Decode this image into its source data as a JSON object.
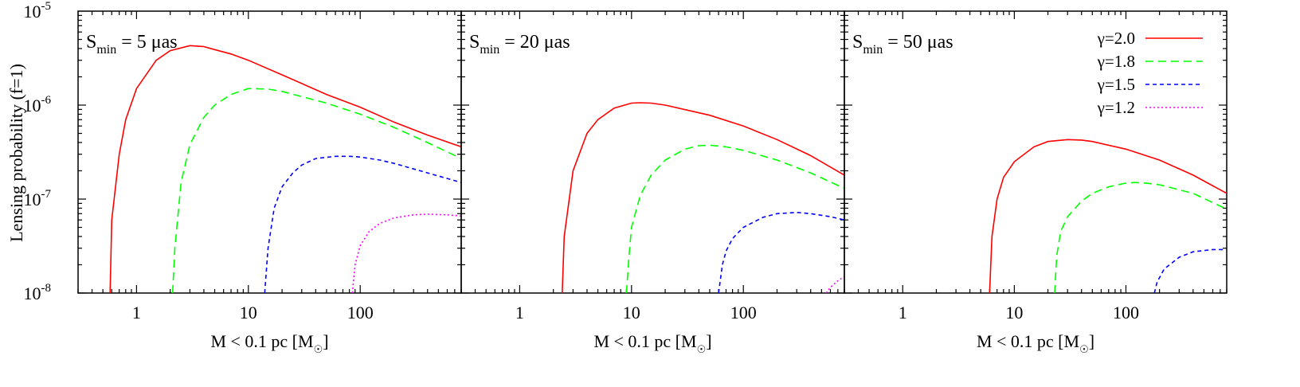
{
  "figure": {
    "ylabel": "Lensing probability (f=1)",
    "xlabel": "M < 0.1 pc [M",
    "xlabel_sub": "☉",
    "xlabel_close": "]"
  },
  "legend": [
    {
      "name": "γ=2.0",
      "color": "#ff0000",
      "dash": "solid"
    },
    {
      "name": "γ=1.8",
      "color": "#00ff00",
      "dash": "dashed"
    },
    {
      "name": "γ=1.5",
      "color": "#0000ff",
      "dash": "short-dashed"
    },
    {
      "name": "γ=1.2",
      "color": "#ff00ff",
      "dash": "dotted"
    }
  ],
  "chart_data": [
    {
      "type": "line",
      "panel_label": {
        "base": "S",
        "sub": "min",
        "rest": " = 5 μas"
      },
      "x_scale": "log",
      "y_scale": "log",
      "xlim": [
        0.3,
        800
      ],
      "ylim": [
        1e-08,
        1e-05
      ],
      "x_ticks": [
        1,
        10,
        100
      ],
      "x_tick_labels": [
        "1",
        "10",
        "100"
      ],
      "y_ticks": [
        1e-08,
        1e-07,
        1e-06,
        1e-05
      ],
      "y_tick_labels": [
        "10",
        "10",
        "10",
        "10"
      ],
      "y_tick_exps": [
        "-8",
        "-7",
        "-6",
        "-5"
      ],
      "series": [
        {
          "name": "γ=2.0",
          "points": [
            [
              0.58,
              1e-08
            ],
            [
              0.6,
              6e-08
            ],
            [
              0.7,
              3e-07
            ],
            [
              0.8,
              7e-07
            ],
            [
              1,
              1.5e-06
            ],
            [
              1.5,
              3e-06
            ],
            [
              2,
              3.8e-06
            ],
            [
              3,
              4.3e-06
            ],
            [
              4,
              4.2e-06
            ],
            [
              5,
              3.9e-06
            ],
            [
              7,
              3.5e-06
            ],
            [
              10,
              3e-06
            ],
            [
              20,
              2.1e-06
            ],
            [
              50,
              1.3e-06
            ],
            [
              100,
              9.5e-07
            ],
            [
              200,
              6.6e-07
            ],
            [
              400,
              4.8e-07
            ],
            [
              800,
              3.6e-07
            ]
          ]
        },
        {
          "name": "γ=1.8",
          "points": [
            [
              2.1,
              1e-08
            ],
            [
              2.2,
              3e-08
            ],
            [
              2.5,
              1.5e-07
            ],
            [
              3,
              3.8e-07
            ],
            [
              4,
              7.4e-07
            ],
            [
              5,
              1e-06
            ],
            [
              7,
              1.3e-06
            ],
            [
              10,
              1.5e-06
            ],
            [
              15,
              1.48e-06
            ],
            [
              20,
              1.4e-06
            ],
            [
              50,
              1.05e-06
            ],
            [
              100,
              8e-07
            ],
            [
              200,
              5.8e-07
            ],
            [
              400,
              4e-07
            ],
            [
              800,
              2.7e-07
            ]
          ]
        },
        {
          "name": "γ=1.5",
          "points": [
            [
              14,
              1e-08
            ],
            [
              15,
              3e-08
            ],
            [
              17,
              8e-08
            ],
            [
              20,
              1.35e-07
            ],
            [
              25,
              1.9e-07
            ],
            [
              30,
              2.3e-07
            ],
            [
              40,
              2.7e-07
            ],
            [
              60,
              2.85e-07
            ],
            [
              80,
              2.85e-07
            ],
            [
              100,
              2.8e-07
            ],
            [
              150,
              2.6e-07
            ],
            [
              200,
              2.4e-07
            ],
            [
              400,
              1.9e-07
            ],
            [
              800,
              1.5e-07
            ]
          ]
        },
        {
          "name": "γ=1.2",
          "points": [
            [
              85,
              1e-08
            ],
            [
              90,
              2e-08
            ],
            [
              100,
              3.2e-08
            ],
            [
              120,
              4.5e-08
            ],
            [
              150,
              5.5e-08
            ],
            [
              200,
              6.3e-08
            ],
            [
              300,
              6.8e-08
            ],
            [
              400,
              6.9e-08
            ],
            [
              600,
              6.8e-08
            ],
            [
              800,
              6.6e-08
            ]
          ]
        }
      ]
    },
    {
      "type": "line",
      "panel_label": {
        "base": "S",
        "sub": "min",
        "rest": " = 20 μas"
      },
      "x_scale": "log",
      "y_scale": "log",
      "xlim": [
        0.3,
        800
      ],
      "ylim": [
        1e-08,
        1e-05
      ],
      "x_ticks": [
        1,
        10,
        100
      ],
      "x_tick_labels": [
        "1",
        "10",
        "100"
      ],
      "series": [
        {
          "name": "γ=2.0",
          "points": [
            [
              2.4,
              1e-08
            ],
            [
              2.5,
              4e-08
            ],
            [
              3,
              2e-07
            ],
            [
              4,
              5e-07
            ],
            [
              5,
              7e-07
            ],
            [
              7,
              9.3e-07
            ],
            [
              10,
              1.05e-06
            ],
            [
              12,
              1.06e-06
            ],
            [
              15,
              1.05e-06
            ],
            [
              20,
              1e-06
            ],
            [
              50,
              7.8e-07
            ],
            [
              100,
              6e-07
            ],
            [
              200,
              4.3e-07
            ],
            [
              400,
              2.9e-07
            ],
            [
              800,
              1.8e-07
            ]
          ]
        },
        {
          "name": "γ=1.8",
          "points": [
            [
              9,
              1e-08
            ],
            [
              9.5,
              2.5e-08
            ],
            [
              10,
              5e-08
            ],
            [
              12,
              1.1e-07
            ],
            [
              15,
              1.8e-07
            ],
            [
              20,
              2.6e-07
            ],
            [
              30,
              3.4e-07
            ],
            [
              40,
              3.7e-07
            ],
            [
              50,
              3.75e-07
            ],
            [
              70,
              3.6e-07
            ],
            [
              100,
              3.3e-07
            ],
            [
              200,
              2.6e-07
            ],
            [
              400,
              1.9e-07
            ],
            [
              800,
              1.3e-07
            ]
          ]
        },
        {
          "name": "γ=1.5",
          "points": [
            [
              60,
              1e-08
            ],
            [
              65,
              2e-08
            ],
            [
              70,
              2.8e-08
            ],
            [
              80,
              3.8e-08
            ],
            [
              100,
              5e-08
            ],
            [
              150,
              6.4e-08
            ],
            [
              200,
              7e-08
            ],
            [
              300,
              7.2e-08
            ],
            [
              400,
              7e-08
            ],
            [
              600,
              6.5e-08
            ],
            [
              800,
              6e-08
            ]
          ]
        },
        {
          "name": "γ=1.2",
          "points": [
            [
              550,
              1e-08
            ],
            [
              600,
              1.15e-08
            ],
            [
              700,
              1.35e-08
            ],
            [
              800,
              1.5e-08
            ]
          ]
        }
      ]
    },
    {
      "type": "line",
      "panel_label": {
        "base": "S",
        "sub": "min",
        "rest": " = 50 μas"
      },
      "x_scale": "log",
      "y_scale": "log",
      "xlim": [
        0.3,
        800
      ],
      "ylim": [
        1e-08,
        1e-05
      ],
      "x_ticks": [
        1,
        10,
        100
      ],
      "x_tick_labels": [
        "1",
        "10",
        "100"
      ],
      "series": [
        {
          "name": "γ=2.0",
          "points": [
            [
              6,
              1e-08
            ],
            [
              6.3,
              4e-08
            ],
            [
              7,
              1e-07
            ],
            [
              8,
              1.7e-07
            ],
            [
              10,
              2.5e-07
            ],
            [
              15,
              3.6e-07
            ],
            [
              20,
              4.1e-07
            ],
            [
              30,
              4.3e-07
            ],
            [
              40,
              4.25e-07
            ],
            [
              50,
              4.1e-07
            ],
            [
              100,
              3.4e-07
            ],
            [
              200,
              2.6e-07
            ],
            [
              400,
              1.8e-07
            ],
            [
              800,
              1.15e-07
            ]
          ]
        },
        {
          "name": "γ=1.8",
          "points": [
            [
              23,
              1e-08
            ],
            [
              24,
              2.5e-08
            ],
            [
              26,
              4.5e-08
            ],
            [
              30,
              6.5e-08
            ],
            [
              40,
              9.5e-08
            ],
            [
              50,
              1.15e-07
            ],
            [
              70,
              1.35e-07
            ],
            [
              100,
              1.48e-07
            ],
            [
              120,
              1.5e-07
            ],
            [
              150,
              1.48e-07
            ],
            [
              200,
              1.42e-07
            ],
            [
              400,
              1.15e-07
            ],
            [
              800,
              7.8e-08
            ]
          ]
        },
        {
          "name": "γ=1.5",
          "points": [
            [
              180,
              1e-08
            ],
            [
              190,
              1.3e-08
            ],
            [
              220,
              1.8e-08
            ],
            [
              300,
              2.4e-08
            ],
            [
              400,
              2.75e-08
            ],
            [
              600,
              2.9e-08
            ],
            [
              800,
              2.9e-08
            ]
          ]
        }
      ]
    }
  ]
}
